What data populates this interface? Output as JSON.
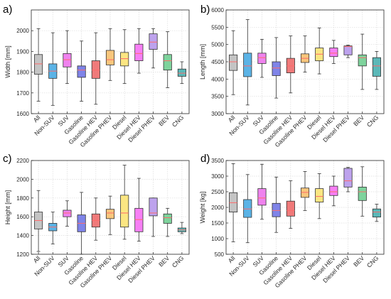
{
  "chart_data": [
    {
      "type": "boxplot",
      "panel_label": "a)",
      "ylabel": "Width [mm]",
      "ylim": [
        1600,
        2100
      ],
      "yticks": [
        1600,
        1700,
        1800,
        1900,
        2000
      ],
      "grid": true,
      "categories": [
        "All",
        "Non-SUV",
        "SUV",
        "Gasoline",
        "Gasoline HEV",
        "Gasoline PHEV",
        "Diesel",
        "Diesel HEV",
        "Diesel PHEV",
        "BEV",
        "CNG"
      ],
      "colors": [
        "#c4c4c4",
        "#5bb3e6",
        "#ef82ee",
        "#7f84e8",
        "#f07a7a",
        "#f9c67c",
        "#fbe682",
        "#f77ff5",
        "#bda2ed",
        "#7ed39c",
        "#5bb8b8"
      ],
      "boxes": [
        {
          "min": 1660,
          "q1": 1790,
          "median": 1840,
          "q3": 1885,
          "max": 2010
        },
        {
          "min": 1640,
          "q1": 1770,
          "median": 1805,
          "q3": 1840,
          "max": 1990
        },
        {
          "min": 1745,
          "q1": 1825,
          "median": 1860,
          "q3": 1890,
          "max": 2000
        },
        {
          "min": 1660,
          "q1": 1775,
          "median": 1810,
          "q3": 1830,
          "max": 1950
        },
        {
          "min": 1645,
          "q1": 1770,
          "median": 1810,
          "q3": 1855,
          "max": 1990
        },
        {
          "min": 1760,
          "q1": 1835,
          "median": 1860,
          "q3": 1905,
          "max": 2010
        },
        {
          "min": 1745,
          "q1": 1830,
          "median": 1865,
          "q3": 1895,
          "max": 2005
        },
        {
          "min": 1795,
          "q1": 1855,
          "median": 1890,
          "q3": 1935,
          "max": 2010
        },
        {
          "min": 1820,
          "q1": 1910,
          "median": 1945,
          "q3": 1985,
          "max": 2010
        },
        {
          "min": 1725,
          "q1": 1810,
          "median": 1855,
          "q3": 1885,
          "max": 1995
        },
        {
          "min": 1745,
          "q1": 1780,
          "median": 1795,
          "q3": 1815,
          "max": 1850
        }
      ]
    },
    {
      "type": "boxplot",
      "panel_label": "b)",
      "ylabel": "Length [mm]",
      "ylim": [
        3000,
        6000
      ],
      "yticks": [
        3000,
        3500,
        4000,
        4500,
        5000,
        5500,
        6000
      ],
      "grid": true,
      "categories": [
        "All",
        "Non-SUV",
        "SUV",
        "Gasoline",
        "Gasoline HEV",
        "Gasoline PHEV",
        "Diesel",
        "Diesel HEV",
        "Diesel PHEV",
        "BEV",
        "CNG"
      ],
      "colors": [
        "#c4c4c4",
        "#5bb3e6",
        "#ef82ee",
        "#7f84e8",
        "#f07a7a",
        "#f9c67c",
        "#fbe682",
        "#f77ff5",
        "#bda2ed",
        "#7ed39c",
        "#5bb8b8"
      ],
      "boxes": [
        {
          "min": 3550,
          "q1": 4250,
          "median": 4500,
          "q3": 4700,
          "max": 5400
        },
        {
          "min": 3250,
          "q1": 4070,
          "median": 4380,
          "q3": 4750,
          "max": 5720
        },
        {
          "min": 4050,
          "q1": 4450,
          "median": 4620,
          "q3": 4750,
          "max": 5150
        },
        {
          "min": 3450,
          "q1": 4100,
          "median": 4320,
          "q3": 4500,
          "max": 5200
        },
        {
          "min": 3600,
          "q1": 4180,
          "median": 4380,
          "q3": 4600,
          "max": 5250
        },
        {
          "min": 4200,
          "q1": 4480,
          "median": 4600,
          "q3": 4730,
          "max": 5250
        },
        {
          "min": 4150,
          "q1": 4530,
          "median": 4720,
          "q3": 4900,
          "max": 5480
        },
        {
          "min": 4450,
          "q1": 4650,
          "median": 4750,
          "q3": 4900,
          "max": 5120
        },
        {
          "min": 4620,
          "q1": 4700,
          "median": 4940,
          "q3": 4960,
          "max": 4980
        },
        {
          "min": 3700,
          "q1": 4380,
          "median": 4620,
          "q3": 4700,
          "max": 5300
        },
        {
          "min": 3700,
          "q1": 4080,
          "median": 4380,
          "q3": 4620,
          "max": 4800
        }
      ]
    },
    {
      "type": "boxplot",
      "panel_label": "c)",
      "ylabel": "Height [mm]",
      "ylim": [
        1200,
        2200
      ],
      "yticks": [
        1200,
        1400,
        1600,
        1800,
        2000,
        2200
      ],
      "grid": true,
      "categories": [
        "All",
        "Non-SUV",
        "SUV",
        "Gasoline",
        "Gasoline HEV",
        "Gasoline PHEV",
        "Diesel",
        "Diesel HEV",
        "Diesel PHEV",
        "BEV",
        "CNG"
      ],
      "colors": [
        "#c4c4c4",
        "#5bb3e6",
        "#ef82ee",
        "#7f84e8",
        "#f07a7a",
        "#f9c67c",
        "#fbe682",
        "#f77ff5",
        "#bda2ed",
        "#7ed39c",
        "#5bb8b8"
      ],
      "boxes": [
        {
          "min": 1230,
          "q1": 1470,
          "median": 1560,
          "q3": 1650,
          "max": 1880
        },
        {
          "min": 1310,
          "q1": 1450,
          "median": 1490,
          "q3": 1530,
          "max": 1650
        },
        {
          "min": 1500,
          "q1": 1600,
          "median": 1640,
          "q3": 1670,
          "max": 1770
        },
        {
          "min": 1200,
          "q1": 1440,
          "median": 1530,
          "q3": 1620,
          "max": 1860
        },
        {
          "min": 1350,
          "q1": 1490,
          "median": 1560,
          "q3": 1630,
          "max": 1800
        },
        {
          "min": 1410,
          "q1": 1580,
          "median": 1640,
          "q3": 1680,
          "max": 1820
        },
        {
          "min": 1360,
          "q1": 1490,
          "median": 1640,
          "q3": 1830,
          "max": 2150
        },
        {
          "min": 1340,
          "q1": 1440,
          "median": 1570,
          "q3": 1690,
          "max": 2010
        },
        {
          "min": 1390,
          "q1": 1610,
          "median": 1640,
          "q3": 1800,
          "max": 1800
        },
        {
          "min": 1390,
          "q1": 1530,
          "median": 1590,
          "q3": 1630,
          "max": 1690
        },
        {
          "min": 1420,
          "q1": 1440,
          "median": 1460,
          "q3": 1480,
          "max": 1540
        }
      ]
    },
    {
      "type": "boxplot",
      "panel_label": "d)",
      "ylabel": "Weight [kg]",
      "ylim": [
        500,
        3500
      ],
      "yticks": [
        500,
        1000,
        1500,
        2000,
        2500,
        3000,
        3500
      ],
      "grid": true,
      "categories": [
        "All",
        "Non-SUV",
        "SUV",
        "Gasoline",
        "Gasoline HEV",
        "Gasoline PHEV",
        "Diesel",
        "Diesel HEV",
        "Diesel PHEV",
        "BEV",
        "CNG"
      ],
      "colors": [
        "#c4c4c4",
        "#5bb3e6",
        "#ef82ee",
        "#7f84e8",
        "#f07a7a",
        "#f9c67c",
        "#fbe682",
        "#f77ff5",
        "#bda2ed",
        "#7ed39c",
        "#5bb8b8"
      ],
      "boxes": [
        {
          "min": 900,
          "q1": 1850,
          "median": 2150,
          "q3": 2470,
          "max": 3400
        },
        {
          "min": 870,
          "q1": 1680,
          "median": 1950,
          "q3": 2250,
          "max": 3050
        },
        {
          "min": 1620,
          "q1": 2070,
          "median": 2300,
          "q3": 2600,
          "max": 3380
        },
        {
          "min": 1200,
          "q1": 1700,
          "median": 1900,
          "q3": 2130,
          "max": 2970
        },
        {
          "min": 1330,
          "q1": 1720,
          "median": 1900,
          "q3": 2200,
          "max": 2850
        },
        {
          "min": 1900,
          "q1": 2320,
          "median": 2480,
          "q3": 2620,
          "max": 3150
        },
        {
          "min": 1640,
          "q1": 2170,
          "median": 2350,
          "q3": 2600,
          "max": 3080
        },
        {
          "min": 2050,
          "q1": 2380,
          "median": 2500,
          "q3": 2680,
          "max": 3000
        },
        {
          "min": 2500,
          "q1": 2650,
          "median": 2850,
          "q3": 3250,
          "max": 3280
        },
        {
          "min": 1720,
          "q1": 2220,
          "median": 2500,
          "q3": 2650,
          "max": 3300
        },
        {
          "min": 1550,
          "q1": 1690,
          "median": 1850,
          "q3": 1950,
          "max": 2100
        }
      ]
    }
  ]
}
